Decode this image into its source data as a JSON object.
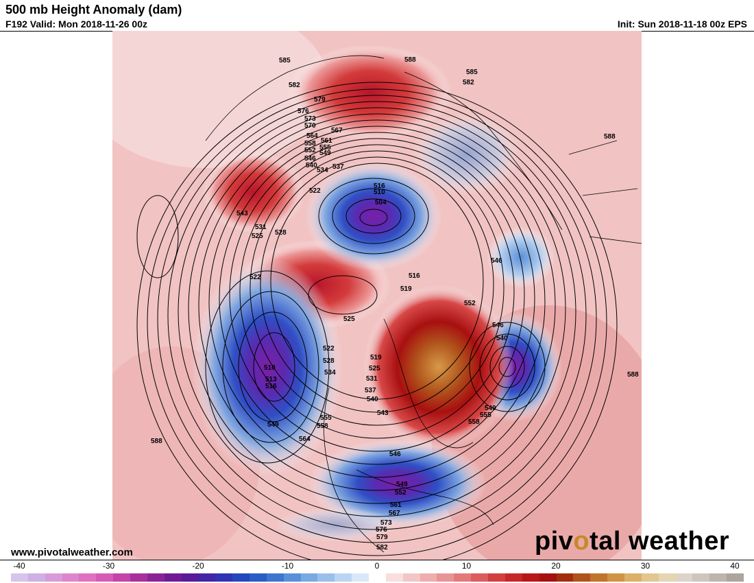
{
  "header": {
    "title": "500 mb Height Anomaly (dam)",
    "valid": "F192 Valid: Mon 2018-11-26 00z",
    "init": "Init: Sun 2018-11-18 00z EPS"
  },
  "footer": {
    "url": "www.pivotalweather.com",
    "brand_pre": "piv",
    "brand_dot": "o",
    "brand_post": "tal weather"
  },
  "colorbar": {
    "ticks": [
      "-40",
      "-30",
      "-20",
      "-10",
      "0",
      "10",
      "20",
      "30",
      "40"
    ],
    "min": -40,
    "max": 40,
    "colors": [
      "#d7c4ec",
      "#cfb0e6",
      "#d79bd9",
      "#dd86cd",
      "#e070c2",
      "#d65bb6",
      "#c444a8",
      "#a8309c",
      "#8a2496",
      "#6f1b95",
      "#5a1a99",
      "#4325a6",
      "#2f34b4",
      "#2347bd",
      "#2a5dc6",
      "#3d75cf",
      "#5990d8",
      "#79a9e1",
      "#99c0ea",
      "#bad5f2",
      "#d8e8f8",
      "#ffffff",
      "#f9dede",
      "#f3c6c6",
      "#eeaeae",
      "#e99494",
      "#e37a7a",
      "#db5d5d",
      "#d24040",
      "#c62828",
      "#b71818",
      "#a61010",
      "#a32e0e",
      "#b0541c",
      "#c0742c",
      "#cf9443",
      "#dbb067",
      "#e2c690",
      "#e5d6b3",
      "#ddd4c9",
      "#cec6bd",
      "#bdb5ac",
      "#ada49c"
    ]
  },
  "contour_labels": [
    "585",
    "588",
    "582",
    "585",
    "582",
    "579",
    "576",
    "573",
    "570",
    "567",
    "564",
    "561",
    "558",
    "555",
    "552",
    "549",
    "546",
    "540",
    "537",
    "534",
    "522",
    "516",
    "510",
    "504",
    "543",
    "531",
    "525",
    "528",
    "522",
    "546",
    "516",
    "519",
    "552",
    "525",
    "546",
    "540",
    "522",
    "528",
    "534",
    "519",
    "525",
    "531",
    "537",
    "540",
    "543",
    "510",
    "513",
    "516",
    "549",
    "555",
    "558",
    "564",
    "549",
    "555",
    "558",
    "588",
    "588",
    "588",
    "546",
    "549",
    "552",
    "561",
    "567",
    "573",
    "576",
    "579",
    "582"
  ]
}
